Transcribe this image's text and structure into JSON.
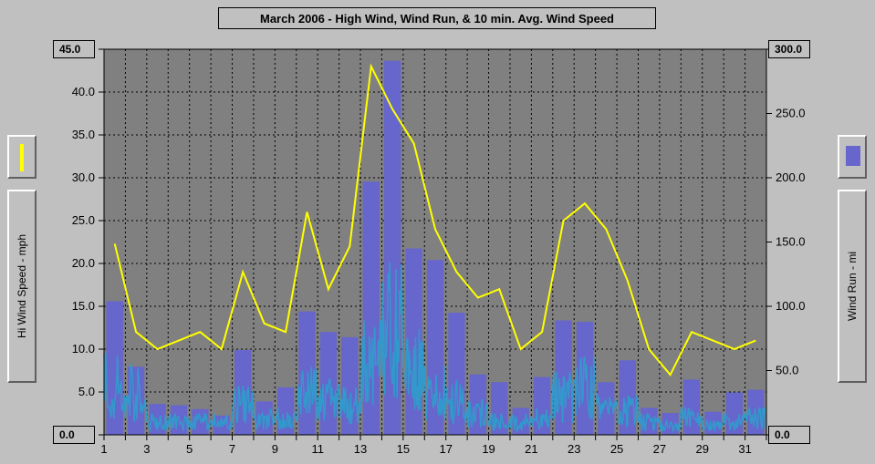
{
  "chart_data": {
    "type": "bar",
    "title": "March 2006 - High Wind, Wind Run, & 10 min. Avg. Wind Speed",
    "ylabel_left": "Hi Wind Speed - mph",
    "ylabel_right": "Wind Run - mi",
    "xlim": [
      1,
      32
    ],
    "ylim_left": [
      0,
      45
    ],
    "ylim_right": [
      0,
      300
    ],
    "x_ticks": [
      "1",
      "3",
      "5",
      "7",
      "9",
      "11",
      "13",
      "15",
      "17",
      "19",
      "21",
      "23",
      "25",
      "27",
      "29",
      "31"
    ],
    "y_left_ticks": [
      "0.0",
      "5.0",
      "10.0",
      "15.0",
      "20.0",
      "25.0",
      "30.0",
      "35.0",
      "40.0",
      "45.0"
    ],
    "y_right_ticks": [
      "0.0",
      "50.0",
      "100.0",
      "150.0",
      "200.0",
      "250.0",
      "300.0"
    ],
    "grid": true,
    "colors": {
      "bars": "#6666cc",
      "high_wind": "#ffff00",
      "avg_speed": "#3399cc",
      "plot_bg": "#808080"
    },
    "series": [
      {
        "type": "bar",
        "axis": "right",
        "x": [
          1,
          2,
          3,
          4,
          5,
          6,
          7,
          8,
          9,
          10,
          11,
          12,
          13,
          14,
          15,
          16,
          17,
          18,
          19,
          20,
          21,
          22,
          23,
          24,
          25,
          26,
          27,
          28,
          29,
          30,
          31
        ],
        "values": [
          104,
          53,
          24,
          23,
          20,
          15,
          66,
          26,
          37,
          96,
          80,
          76,
          197,
          291,
          145,
          136,
          95,
          47,
          41,
          21,
          45,
          89,
          88,
          41,
          58,
          21,
          17,
          43,
          18,
          33,
          35
        ]
      },
      {
        "type": "line",
        "axis": "left",
        "x": [
          1,
          2,
          3,
          4,
          5,
          6,
          7,
          8,
          9,
          10,
          11,
          12,
          13,
          14,
          15,
          16,
          17,
          18,
          19,
          20,
          21,
          22,
          23,
          24,
          25,
          26,
          27,
          28,
          29,
          30,
          31
        ],
        "values": [
          22.3,
          12.0,
          10.0,
          11.0,
          12.0,
          10.0,
          19.0,
          13.0,
          12.0,
          26.0,
          17.0,
          22.0,
          43.0,
          38.0,
          34.0,
          24.0,
          19.0,
          16.0,
          17.0,
          10.0,
          12.0,
          25.0,
          27.0,
          24.0,
          18.0,
          10.0,
          7.0,
          12.0,
          11.0,
          10.0,
          11.0
        ]
      },
      {
        "type": "line",
        "axis": "left",
        "x": [
          1,
          2,
          3,
          4,
          5,
          6,
          7,
          8,
          9,
          10,
          11,
          12,
          13,
          14,
          15,
          16,
          17,
          18,
          19,
          20,
          21,
          22,
          23,
          24,
          25,
          26,
          27,
          28,
          29,
          30,
          31
        ],
        "values": [
          6,
          5,
          1.5,
          1.5,
          1.5,
          1.5,
          3.5,
          2,
          2,
          5,
          4,
          3.5,
          8,
          12,
          9,
          5,
          4,
          2.5,
          1.5,
          1.5,
          2,
          4.5,
          5.5,
          3,
          3,
          1.5,
          1,
          2,
          1,
          1.5,
          2
        ]
      }
    ]
  }
}
